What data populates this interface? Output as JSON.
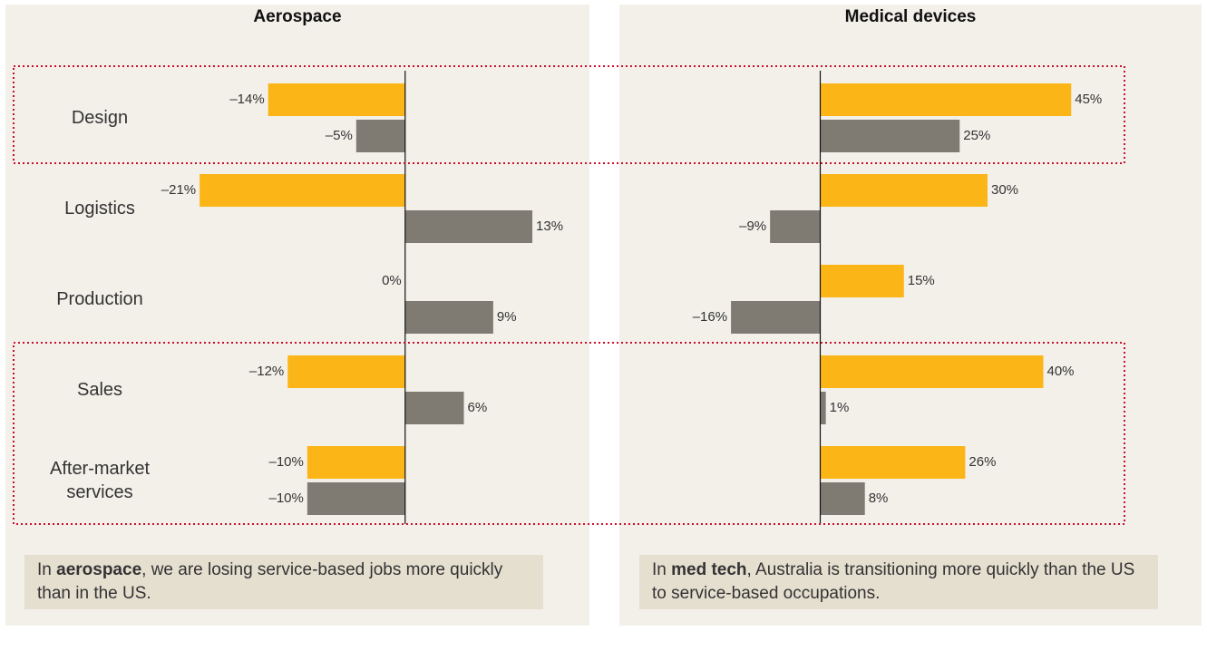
{
  "chart_data": [
    {
      "type": "barh",
      "title": "Aerospace",
      "categories": [
        "Design",
        "Logistics",
        "Production",
        "Sales",
        "After-market services"
      ],
      "series": [
        {
          "color": "#fbb516",
          "values": [
            -14,
            -21,
            0,
            -12,
            -10
          ],
          "value_labels": [
            "–14%",
            "–21%",
            "0%",
            "–12%",
            "–10%"
          ]
        },
        {
          "color": "#7f7b73",
          "values": [
            -5,
            13,
            9,
            6,
            -10
          ],
          "value_labels": [
            "–5%",
            "13%",
            "9%",
            "6%",
            "–10%"
          ]
        }
      ],
      "xlim": [
        -25,
        18
      ],
      "note": [
        "In ",
        "aerospace",
        ", we are losing service-based jobs more quickly than in the US."
      ]
    },
    {
      "type": "barh",
      "title": "Medical devices",
      "series": [
        {
          "color": "#fbb516",
          "values": [
            45,
            30,
            15,
            40,
            26
          ],
          "value_labels": [
            "45%",
            "30%",
            "15%",
            "40%",
            "26%"
          ]
        },
        {
          "color": "#7f7b73",
          "values": [
            25,
            -9,
            -16,
            1,
            8
          ],
          "value_labels": [
            "25%",
            "–9%",
            "–16%",
            "1%",
            "8%"
          ]
        }
      ],
      "xlim": [
        -30,
        50
      ],
      "note": [
        "In ",
        "med tech",
        ", Australia is transitioning more quickly than the US to service-based occupations."
      ]
    }
  ]
}
